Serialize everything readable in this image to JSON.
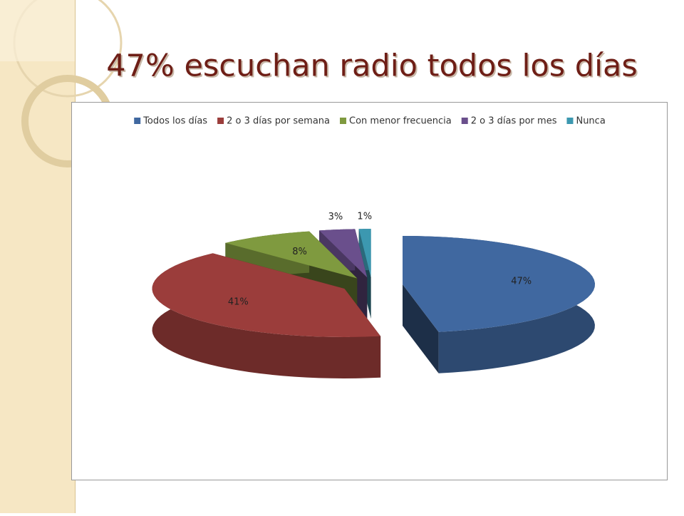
{
  "chart_data": {
    "type": "pie3d",
    "title": "47% escuchan radio todos los días",
    "categories": [
      "Todos los días",
      "2 o 3 días por semana",
      "Con menor frecuencia",
      "2 o 3 días por mes",
      "Nunca"
    ],
    "values": [
      47,
      41,
      8,
      3,
      1
    ],
    "value_labels": [
      "47%",
      "41%",
      "8%",
      "3%",
      "1%"
    ],
    "colors": [
      "#4068a0",
      "#9b3d3b",
      "#7f9a3f",
      "#6a4f8c",
      "#3c98b0"
    ],
    "legend": "top"
  }
}
